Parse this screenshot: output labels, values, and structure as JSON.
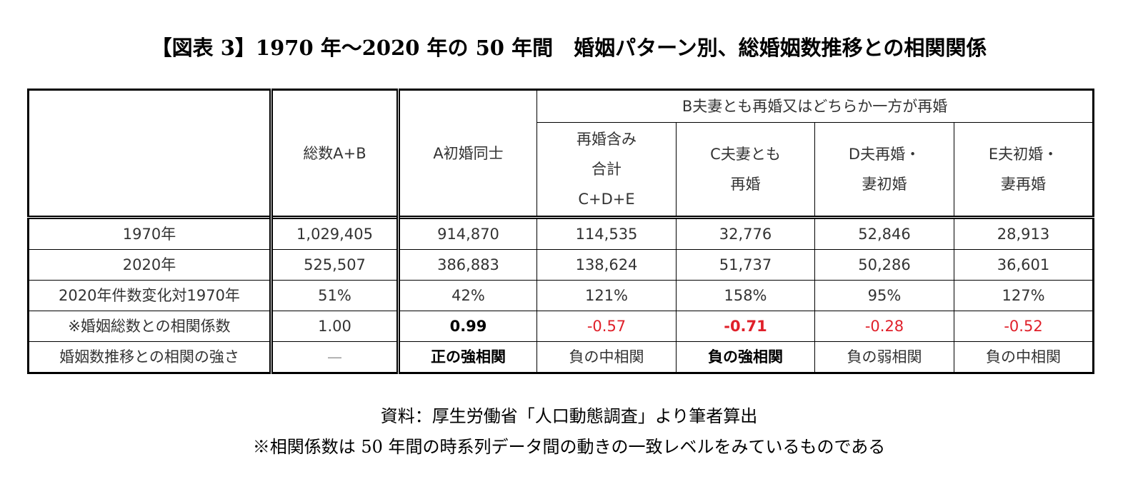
{
  "title": "【図表 3】1970 年〜2020 年の 50 年間　婚姻パターン別、総婚姻数推移との相関関係",
  "table": {
    "group_header": "B夫妻とも再婚又はどちらか一方が再婚",
    "columns": [
      "総数A+B",
      "A初婚同士",
      [
        "再婚含み",
        "合計",
        "C+D+E"
      ],
      [
        "C夫妻とも",
        "再婚"
      ],
      [
        "D夫再婚・",
        "妻初婚"
      ],
      [
        "E夫初婚・",
        "妻再婚"
      ]
    ],
    "rows": [
      {
        "label": "1970年",
        "cells": [
          "1,029,405",
          "914,870",
          "114,535",
          "32,776",
          "52,846",
          "28,913"
        ]
      },
      {
        "label": "2020年",
        "cells": [
          "525,507",
          "386,883",
          "138,624",
          "51,737",
          "50,286",
          "36,601"
        ]
      },
      {
        "label": "2020年件数変化対1970年",
        "cells": [
          "51%",
          "42%",
          "121%",
          "158%",
          "95%",
          "127%"
        ]
      },
      {
        "label": "※婚姻総数との相関係数",
        "cells": [
          "1.00",
          "0.99",
          "-0.57",
          "-0.71",
          "-0.28",
          "-0.52"
        ]
      },
      {
        "label": "婚姻数推移との相関の強さ",
        "cells": [
          "—",
          "正の強相関",
          "負の中相関",
          "負の強相関",
          "負の弱相関",
          "負の中相関"
        ]
      }
    ]
  },
  "notes": [
    "資料：厚生労働省「人口動態調査」より筆者算出",
    "※相関係数は 50 年間の時系列データ間の動きの一致レベルをみているものである"
  ],
  "colors": {
    "negative": "#e0202a",
    "text": "#333333",
    "border": "#000000"
  }
}
